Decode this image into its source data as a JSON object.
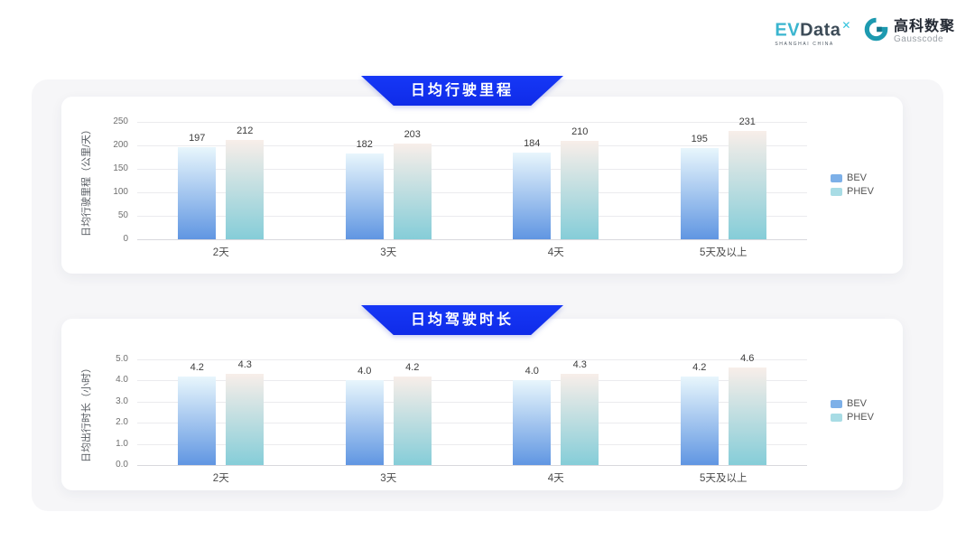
{
  "logos": {
    "evdata": {
      "ev": "EV",
      "data": "Data",
      "sup": "✕",
      "sub": "SHANGHAI CHINA"
    },
    "gausscode": {
      "cn": "高科数聚",
      "en": "Gausscode",
      "mark_color": "#1d9ab0"
    }
  },
  "colors": {
    "banner_blue": "#1233f2",
    "panel_gray": "#f6f6f8",
    "bev_top": "#e8f6fc",
    "bev_bottom": "#6096e2",
    "phev_top": "#f8eee9",
    "phev_bottom": "#85cdd8",
    "legend_bev": "#7db0e8",
    "legend_phev": "#a8dce5"
  },
  "chart_data": [
    {
      "type": "bar",
      "title": "日均行驶里程",
      "ylabel": "日均行驶里程（公里/天）",
      "xlabel": "",
      "categories": [
        "2天",
        "3天",
        "4天",
        "5天及以上"
      ],
      "series": [
        {
          "name": "BEV",
          "values": [
            197,
            182,
            184,
            195
          ],
          "labels": [
            "197",
            "182",
            "184",
            "195"
          ],
          "color_top": "#e8f6fc",
          "color_bottom": "#6096e2",
          "legend_color": "#7db0e8"
        },
        {
          "name": "PHEV",
          "values": [
            212,
            203,
            210,
            231
          ],
          "labels": [
            "212",
            "203",
            "210",
            "231"
          ],
          "color_top": "#f8eee9",
          "color_bottom": "#85cdd8",
          "legend_color": "#a8dce5"
        }
      ],
      "ylim": [
        0,
        250
      ],
      "yticks": [
        "250",
        "200",
        "150",
        "100",
        "50",
        "0"
      ],
      "grid": true,
      "legend_position": "right"
    },
    {
      "type": "bar",
      "title": "日均驾驶时长",
      "ylabel": "日均出行时长（小时）",
      "xlabel": "",
      "categories": [
        "2天",
        "3天",
        "4天",
        "5天及以上"
      ],
      "series": [
        {
          "name": "BEV",
          "values": [
            4.2,
            4.0,
            4.0,
            4.2
          ],
          "labels": [
            "4.2",
            "4.0",
            "4.0",
            "4.2"
          ],
          "color_top": "#e8f6fc",
          "color_bottom": "#6096e2",
          "legend_color": "#7db0e8"
        },
        {
          "name": "PHEV",
          "values": [
            4.3,
            4.2,
            4.3,
            4.6
          ],
          "labels": [
            "4.3",
            "4.2",
            "4.3",
            "4.6"
          ],
          "color_top": "#f8eee9",
          "color_bottom": "#85cdd8",
          "legend_color": "#a8dce5"
        }
      ],
      "ylim": [
        0,
        5
      ],
      "yticks": [
        "5.0",
        "4.0",
        "3.0",
        "2.0",
        "1.0",
        "0.0"
      ],
      "grid": true,
      "legend_position": "right"
    }
  ]
}
